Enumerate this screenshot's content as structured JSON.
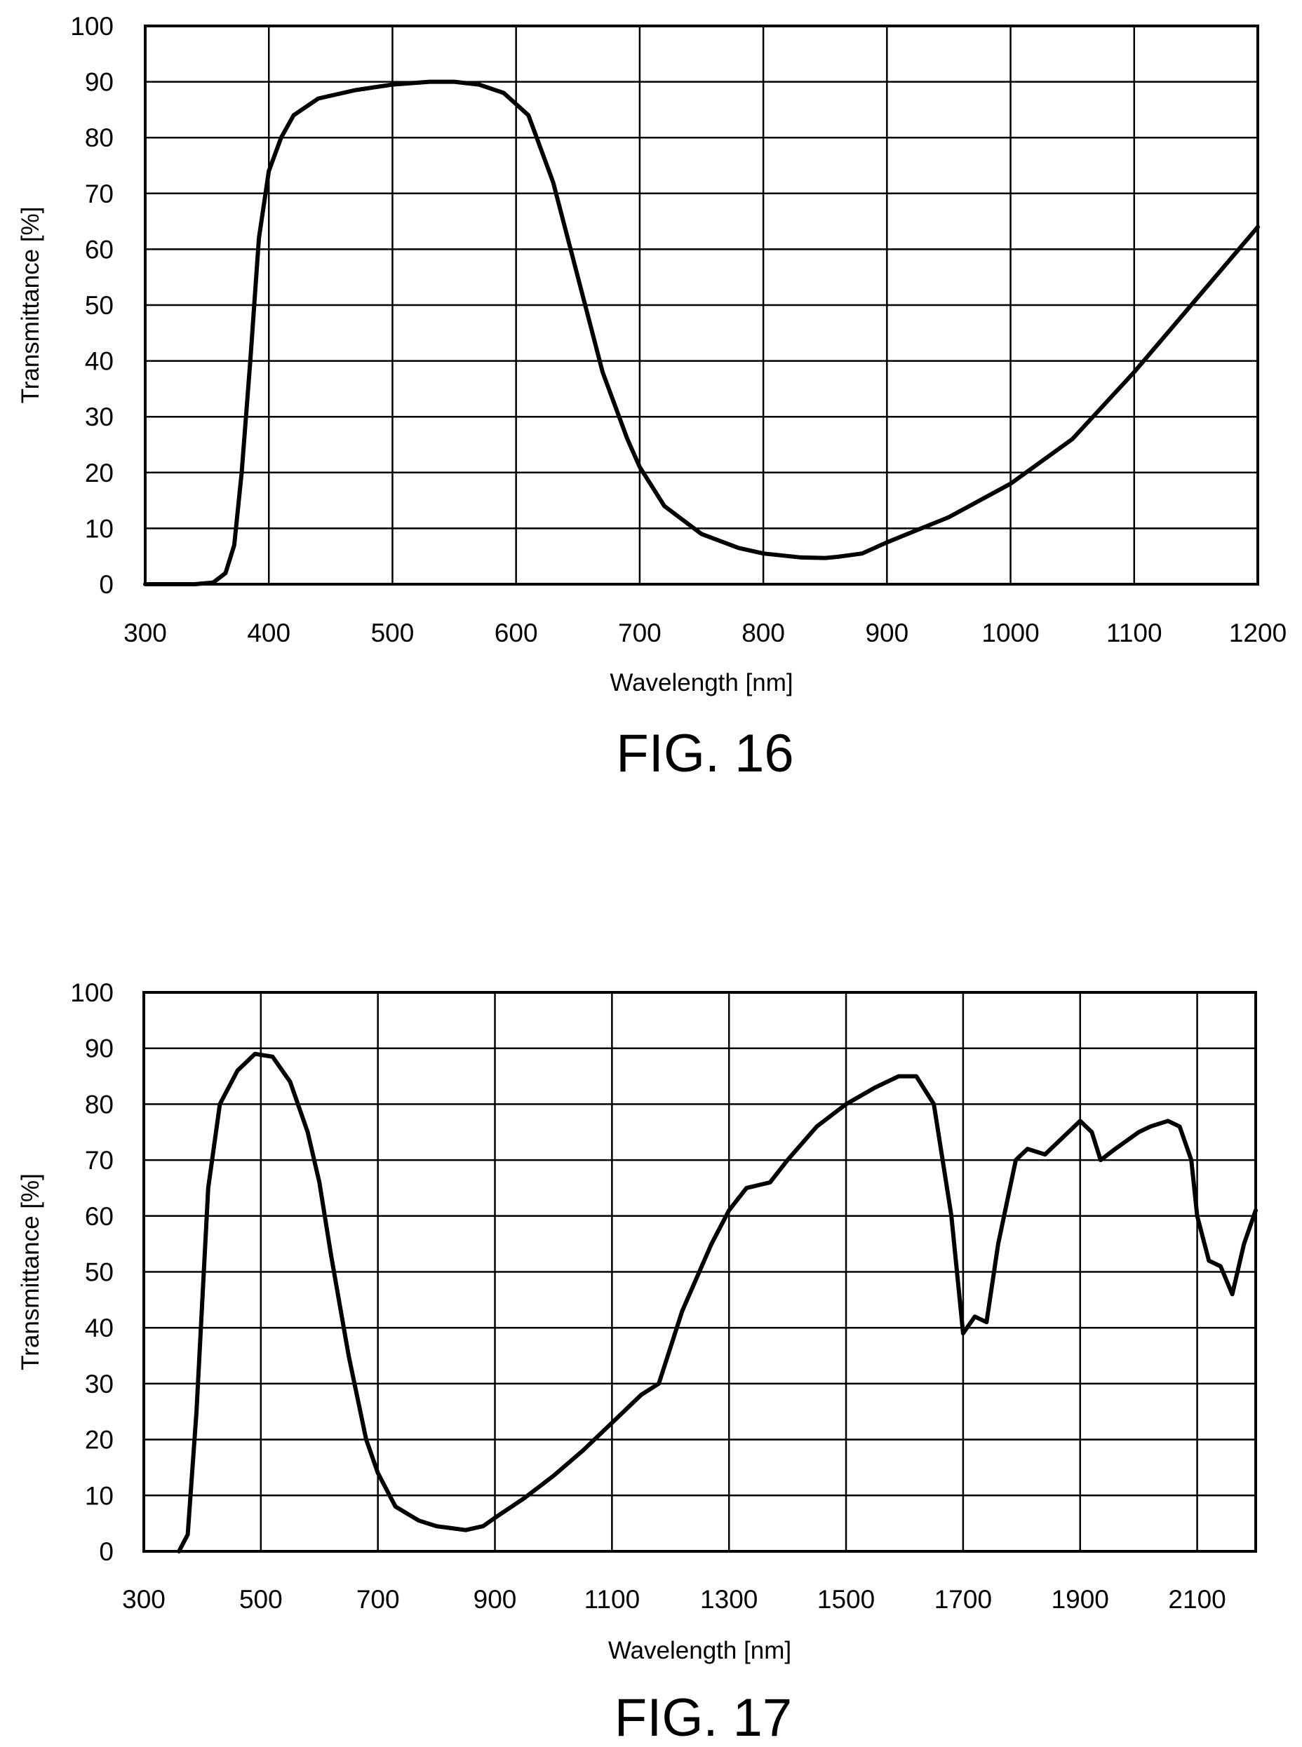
{
  "chart_data": [
    {
      "type": "line",
      "caption": "FIG. 16",
      "title": "",
      "xlabel": "Wavelength [nm]",
      "ylabel": "Transmittance [%]",
      "xlim": [
        300,
        1200
      ],
      "ylim": [
        0,
        100
      ],
      "xticks": [
        "300",
        "400",
        "500",
        "600",
        "700",
        "800",
        "900",
        "1000",
        "1100",
        "1200"
      ],
      "yticks": [
        "0",
        "10",
        "20",
        "30",
        "40",
        "50",
        "60",
        "70",
        "80",
        "90",
        "100"
      ],
      "grid": true,
      "line_color": "#000000",
      "series": [
        {
          "x": [
            300,
            340,
            355,
            365,
            372,
            378,
            385,
            392,
            400,
            410,
            420,
            440,
            470,
            500,
            530,
            550,
            570,
            590,
            610,
            630,
            650,
            670,
            690,
            700,
            720,
            750,
            780,
            800,
            830,
            850,
            860,
            880,
            900,
            950,
            1000,
            1050,
            1100,
            1150,
            1200
          ],
          "y": [
            0,
            0,
            0.3,
            2,
            7,
            20,
            40,
            62,
            74,
            80,
            84,
            87,
            88.5,
            89.5,
            90,
            90,
            89.5,
            88,
            84,
            72,
            55,
            38,
            26,
            21,
            14,
            9,
            6.5,
            5.5,
            4.8,
            4.7,
            4.9,
            5.5,
            7.5,
            12,
            18,
            26,
            38,
            51,
            64
          ]
        }
      ]
    },
    {
      "type": "line",
      "caption": "FIG. 17",
      "title": "",
      "xlabel": "Wavelength [nm]",
      "ylabel": "Transmittance [%]",
      "xlim": [
        300,
        2200
      ],
      "ylim": [
        0,
        100
      ],
      "xticks": [
        "300",
        "500",
        "700",
        "900",
        "1100",
        "1300",
        "1500",
        "1700",
        "1900",
        "2100"
      ],
      "xtick_values": [
        300,
        500,
        700,
        900,
        1100,
        1300,
        1500,
        1700,
        1900,
        2100
      ],
      "xgrid_values": [
        300,
        500,
        700,
        900,
        1100,
        1300,
        1500,
        1700,
        1900,
        2100,
        2200
      ],
      "yticks": [
        "0",
        "10",
        "20",
        "30",
        "40",
        "50",
        "60",
        "70",
        "80",
        "90",
        "100"
      ],
      "grid": true,
      "line_color": "#000000",
      "series": [
        {
          "x": [
            360,
            375,
            390,
            410,
            430,
            460,
            490,
            520,
            550,
            580,
            600,
            620,
            650,
            680,
            700,
            730,
            770,
            800,
            850,
            880,
            900,
            950,
            1000,
            1050,
            1100,
            1150,
            1180,
            1220,
            1270,
            1300,
            1330,
            1370,
            1400,
            1450,
            1500,
            1550,
            1590,
            1620,
            1650,
            1680,
            1700,
            1720,
            1740,
            1760,
            1790,
            1810,
            1840,
            1870,
            1900,
            1920,
            1935,
            1960,
            2000,
            2020,
            2050,
            2070,
            2080,
            2090,
            2100,
            2120,
            2140,
            2160,
            2180,
            2200
          ],
          "y": [
            0,
            3,
            25,
            65,
            80,
            86,
            89,
            88.5,
            84,
            75,
            66,
            53,
            35,
            20,
            14,
            8,
            5.5,
            4.5,
            3.8,
            4.5,
            6,
            9.5,
            13.5,
            18,
            23,
            28,
            30,
            43,
            55,
            61,
            65,
            66,
            70,
            76,
            80,
            83,
            85,
            85,
            80,
            60,
            39,
            42,
            41,
            55,
            70,
            72,
            71,
            74,
            77,
            75,
            70,
            72,
            75,
            76,
            77,
            76,
            73,
            70,
            60,
            52,
            51,
            46,
            55,
            61
          ]
        }
      ]
    }
  ]
}
